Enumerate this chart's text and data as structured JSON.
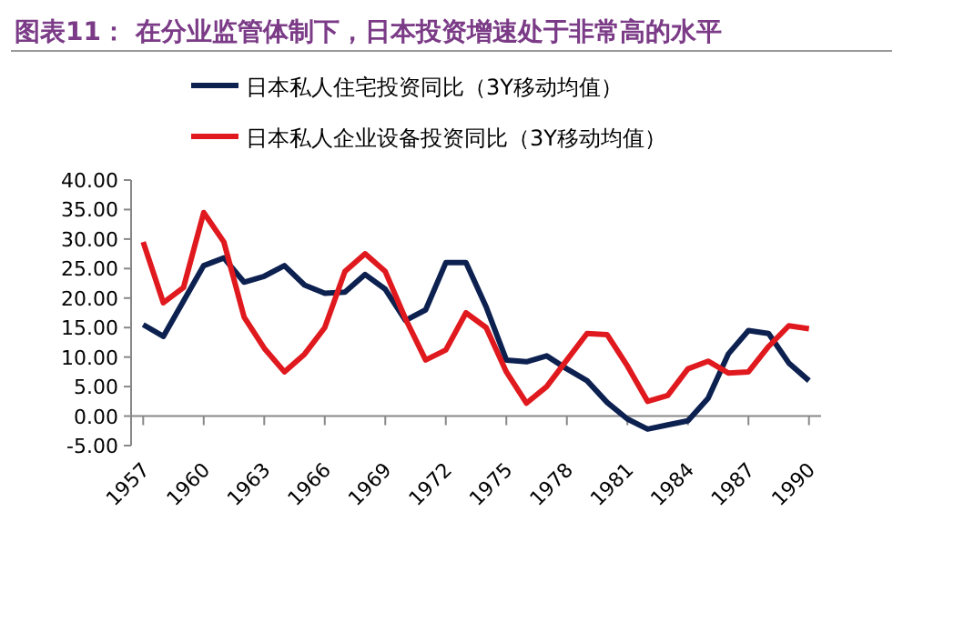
{
  "chart_data": {
    "type": "line",
    "title": "图表11： 在分业监管体制下，日本投资增速处于非常高的水平",
    "x": [
      1957,
      1958,
      1959,
      1960,
      1961,
      1962,
      1963,
      1964,
      1965,
      1966,
      1967,
      1968,
      1969,
      1970,
      1971,
      1972,
      1973,
      1974,
      1975,
      1976,
      1977,
      1978,
      1979,
      1980,
      1981,
      1982,
      1983,
      1984,
      1985,
      1986,
      1987,
      1988,
      1989,
      1990
    ],
    "series": [
      {
        "name": "日本私人住宅投资同比（3Y移动均值）",
        "color": "#0d2150",
        "values": [
          15.5,
          13.5,
          19.5,
          25.5,
          26.8,
          22.7,
          23.7,
          25.5,
          22.2,
          20.8,
          21,
          24,
          21.5,
          16.2,
          18,
          26,
          26,
          18.5,
          9.5,
          9.2,
          10.2,
          8,
          6,
          2.3,
          -0.5,
          -2.2,
          -1.5,
          -0.8,
          3,
          10.5,
          14.5,
          14,
          9,
          6
        ]
      },
      {
        "name": "日本私人企业设备投资同比（3Y移动均值）",
        "color": "#e0191e",
        "values": [
          29.5,
          19.2,
          21.8,
          34.5,
          29.5,
          16.8,
          11.5,
          7.5,
          10.5,
          15,
          24.5,
          27.5,
          24.5,
          16.5,
          9.5,
          11.2,
          17.5,
          15,
          7.5,
          2.2,
          5,
          9.5,
          14,
          13.8,
          8.5,
          2.5,
          3.5,
          8,
          9.3,
          7.3,
          7.5,
          11.8,
          15.3,
          14.8
        ]
      }
    ],
    "xlim": [
      1956.4,
      1990.6
    ],
    "xticks": [
      1957,
      1960,
      1963,
      1966,
      1969,
      1972,
      1975,
      1978,
      1981,
      1984,
      1987,
      1990
    ],
    "ylim": [
      -5,
      40
    ],
    "yticks": [
      {
        "value": -5,
        "label": "-5.00"
      },
      {
        "value": 0,
        "label": "0.00"
      },
      {
        "value": 5,
        "label": "5.00"
      },
      {
        "value": 10,
        "label": "10.00"
      },
      {
        "value": 15,
        "label": "15.00"
      },
      {
        "value": 20,
        "label": "20.00"
      },
      {
        "value": 25,
        "label": "25.00"
      },
      {
        "value": 30,
        "label": "30.00"
      },
      {
        "value": 35,
        "label": "35.00"
      },
      {
        "value": 40,
        "label": "40.00"
      }
    ],
    "grid": false,
    "legend": "top",
    "line_style": "solid"
  }
}
